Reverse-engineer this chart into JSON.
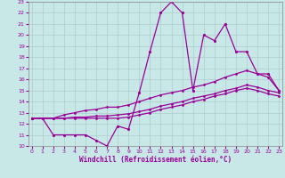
{
  "xlabel": "Windchill (Refroidissement éolien,°C)",
  "bg_color": "#c8e8e8",
  "line_color": "#990099",
  "grid_color": "#b0cccc",
  "xlim_min": 0,
  "xlim_max": 23,
  "ylim_min": 10,
  "ylim_max": 23,
  "xticks": [
    0,
    1,
    2,
    3,
    4,
    5,
    6,
    7,
    8,
    9,
    10,
    11,
    12,
    13,
    14,
    15,
    16,
    17,
    18,
    19,
    20,
    21,
    22,
    23
  ],
  "yticks": [
    10,
    11,
    12,
    13,
    14,
    15,
    16,
    17,
    18,
    19,
    20,
    21,
    22,
    23
  ],
  "line1_x": [
    0,
    1,
    2,
    3,
    4,
    5,
    6,
    7,
    8,
    9,
    10,
    11,
    12,
    13,
    14,
    15,
    16,
    17,
    18,
    19,
    20,
    21,
    22,
    23
  ],
  "line1_y": [
    12.5,
    12.5,
    11.0,
    11.0,
    11.0,
    11.0,
    10.5,
    10.0,
    11.8,
    11.5,
    14.8,
    18.5,
    22.0,
    23.0,
    22.0,
    15.0,
    20.0,
    19.5,
    21.0,
    18.5,
    18.5,
    16.5,
    16.5,
    15.0
  ],
  "line2_x": [
    0,
    1,
    2,
    3,
    4,
    5,
    6,
    7,
    8,
    9,
    10,
    11,
    12,
    13,
    14,
    15,
    16,
    17,
    18,
    19,
    20,
    21,
    22,
    23
  ],
  "line2_y": [
    12.5,
    12.5,
    12.5,
    12.8,
    13.0,
    13.2,
    13.3,
    13.5,
    13.5,
    13.7,
    14.0,
    14.3,
    14.6,
    14.8,
    15.0,
    15.3,
    15.5,
    15.8,
    16.2,
    16.5,
    16.8,
    16.5,
    16.2,
    15.0
  ],
  "line3_x": [
    0,
    1,
    2,
    3,
    4,
    5,
    6,
    7,
    8,
    9,
    10,
    11,
    12,
    13,
    14,
    15,
    16,
    17,
    18,
    19,
    20,
    21,
    22,
    23
  ],
  "line3_y": [
    12.5,
    12.5,
    12.5,
    12.5,
    12.6,
    12.6,
    12.7,
    12.7,
    12.8,
    12.9,
    13.1,
    13.3,
    13.6,
    13.8,
    14.0,
    14.3,
    14.5,
    14.7,
    15.0,
    15.2,
    15.5,
    15.3,
    15.0,
    14.8
  ],
  "line4_x": [
    0,
    1,
    2,
    3,
    4,
    5,
    6,
    7,
    8,
    9,
    10,
    11,
    12,
    13,
    14,
    15,
    16,
    17,
    18,
    19,
    20,
    21,
    22,
    23
  ],
  "line4_y": [
    12.5,
    12.5,
    12.5,
    12.5,
    12.5,
    12.5,
    12.5,
    12.5,
    12.5,
    12.6,
    12.8,
    13.0,
    13.3,
    13.5,
    13.7,
    14.0,
    14.2,
    14.5,
    14.7,
    15.0,
    15.2,
    15.0,
    14.7,
    14.5
  ]
}
